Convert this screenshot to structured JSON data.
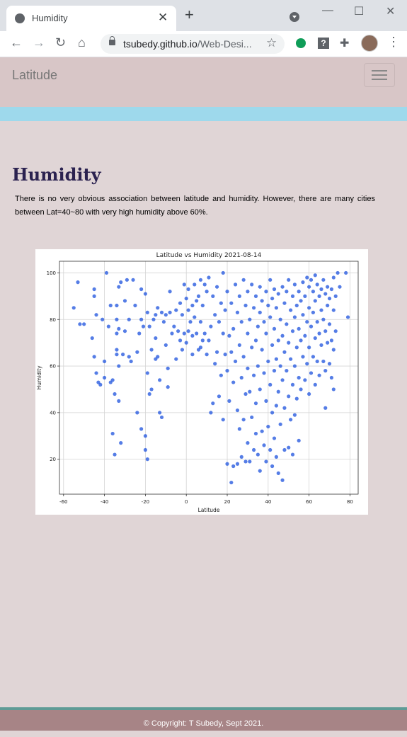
{
  "browser": {
    "tab_title": "Humidity",
    "url_host": "tsubedy.github.io",
    "url_path": "/Web-Desi..."
  },
  "navbar": {
    "brand": "Latitude"
  },
  "main": {
    "heading": "Humidity",
    "description": "There is no very obvious association between latitude and humidity. However, there are many cities between Lat=40~80 with very high humidity above 60%."
  },
  "chart_data": {
    "type": "scatter",
    "title": "Latitude vs Humidity 2021-08-14",
    "xlabel": "Latitude",
    "ylabel": "Humidity",
    "xlim": [
      -62,
      84
    ],
    "ylim": [
      5,
      105
    ],
    "xticks": [
      -60,
      -40,
      -20,
      0,
      20,
      40,
      60,
      80
    ],
    "yticks": [
      20,
      40,
      60,
      80,
      100
    ],
    "grid": true,
    "marker_color": "#2b5ce0",
    "points": [
      [
        -55,
        85
      ],
      [
        -53,
        96
      ],
      [
        -52,
        78
      ],
      [
        -50,
        78
      ],
      [
        -46,
        72
      ],
      [
        -45,
        93
      ],
      [
        -45,
        90
      ],
      [
        -45,
        64
      ],
      [
        -44,
        82
      ],
      [
        -44,
        57
      ],
      [
        -43,
        53
      ],
      [
        -42,
        52
      ],
      [
        -41,
        80
      ],
      [
        -40,
        62
      ],
      [
        -40,
        55
      ],
      [
        -39,
        100
      ],
      [
        -38,
        77
      ],
      [
        -37,
        86
      ],
      [
        -37,
        53
      ],
      [
        -36,
        54
      ],
      [
        -36,
        31
      ],
      [
        -35,
        48
      ],
      [
        -35,
        22
      ],
      [
        -34,
        86
      ],
      [
        -34,
        80
      ],
      [
        -34,
        74
      ],
      [
        -34,
        67
      ],
      [
        -34,
        65
      ],
      [
        -33,
        94
      ],
      [
        -33,
        76
      ],
      [
        -33,
        60
      ],
      [
        -33,
        45
      ],
      [
        -32,
        96
      ],
      [
        -32,
        27
      ],
      [
        -31,
        65
      ],
      [
        -30,
        88
      ],
      [
        -30,
        75
      ],
      [
        -29,
        97
      ],
      [
        -28,
        80
      ],
      [
        -28,
        64
      ],
      [
        -27,
        62
      ],
      [
        -26,
        97
      ],
      [
        -25,
        86
      ],
      [
        -24,
        40
      ],
      [
        -24,
        66
      ],
      [
        -23,
        74
      ],
      [
        -22,
        80
      ],
      [
        -22,
        93
      ],
      [
        -22,
        33
      ],
      [
        -21,
        77
      ],
      [
        -20,
        91
      ],
      [
        -20,
        30
      ],
      [
        -20,
        24
      ],
      [
        -19,
        83
      ],
      [
        -19,
        57
      ],
      [
        -19,
        20
      ],
      [
        -18,
        77
      ],
      [
        -18,
        48
      ],
      [
        -17,
        67
      ],
      [
        -17,
        50
      ],
      [
        -16,
        80
      ],
      [
        -15,
        82
      ],
      [
        -15,
        72
      ],
      [
        -15,
        63
      ],
      [
        -14,
        85
      ],
      [
        -14,
        64
      ],
      [
        -13,
        54
      ],
      [
        -13,
        40
      ],
      [
        -12,
        83
      ],
      [
        -12,
        38
      ],
      [
        -11,
        79
      ],
      [
        -10,
        82
      ],
      [
        -10,
        69
      ],
      [
        -9,
        59
      ],
      [
        -9,
        51
      ],
      [
        -8,
        92
      ],
      [
        -8,
        83
      ],
      [
        -7,
        74
      ],
      [
        -6,
        77
      ],
      [
        -5,
        84
      ],
      [
        -5,
        63
      ],
      [
        -4,
        75
      ],
      [
        -3,
        87
      ],
      [
        -3,
        71
      ],
      [
        -2,
        82
      ],
      [
        -2,
        67
      ],
      [
        -1,
        95
      ],
      [
        -1,
        74
      ],
      [
        0,
        89
      ],
      [
        0,
        70
      ],
      [
        1,
        93
      ],
      [
        1,
        84
      ],
      [
        1,
        75
      ],
      [
        2,
        79
      ],
      [
        3,
        86
      ],
      [
        3,
        73
      ],
      [
        3,
        65
      ],
      [
        4,
        95
      ],
      [
        4,
        81
      ],
      [
        5,
        88
      ],
      [
        5,
        74
      ],
      [
        6,
        90
      ],
      [
        6,
        67
      ],
      [
        7,
        97
      ],
      [
        7,
        79
      ],
      [
        7,
        68
      ],
      [
        8,
        86
      ],
      [
        8,
        71
      ],
      [
        9,
        95
      ],
      [
        9,
        74
      ],
      [
        10,
        92
      ],
      [
        10,
        65
      ],
      [
        11,
        98
      ],
      [
        11,
        71
      ],
      [
        12,
        77
      ],
      [
        12,
        40
      ],
      [
        13,
        90
      ],
      [
        13,
        44
      ],
      [
        14,
        82
      ],
      [
        14,
        61
      ],
      [
        15,
        94
      ],
      [
        15,
        66
      ],
      [
        16,
        79
      ],
      [
        16,
        47
      ],
      [
        17,
        87
      ],
      [
        17,
        56
      ],
      [
        18,
        100
      ],
      [
        18,
        74
      ],
      [
        18,
        37
      ],
      [
        19,
        84
      ],
      [
        19,
        65
      ],
      [
        20,
        92
      ],
      [
        20,
        58
      ],
      [
        20,
        18
      ],
      [
        21,
        73
      ],
      [
        21,
        45
      ],
      [
        22,
        87
      ],
      [
        22,
        66
      ],
      [
        22,
        10
      ],
      [
        23,
        76
      ],
      [
        23,
        53
      ],
      [
        23,
        17
      ],
      [
        24,
        95
      ],
      [
        24,
        62
      ],
      [
        25,
        83
      ],
      [
        25,
        41
      ],
      [
        25,
        18
      ],
      [
        26,
        90
      ],
      [
        26,
        69
      ],
      [
        26,
        33
      ],
      [
        27,
        79
      ],
      [
        27,
        55
      ],
      [
        27,
        21
      ],
      [
        28,
        97
      ],
      [
        28,
        64
      ],
      [
        28,
        37
      ],
      [
        29,
        86
      ],
      [
        29,
        48
      ],
      [
        29,
        19
      ],
      [
        30,
        92
      ],
      [
        30,
        74
      ],
      [
        30,
        59
      ],
      [
        30,
        27
      ],
      [
        31,
        80
      ],
      [
        31,
        49
      ],
      [
        31,
        19
      ],
      [
        32,
        95
      ],
      [
        32,
        68
      ],
      [
        32,
        38
      ],
      [
        33,
        85
      ],
      [
        33,
        56
      ],
      [
        33,
        24
      ],
      [
        34,
        90
      ],
      [
        34,
        71
      ],
      [
        34,
        44
      ],
      [
        34,
        31
      ],
      [
        35,
        77
      ],
      [
        35,
        60
      ],
      [
        35,
        22
      ],
      [
        36,
        94
      ],
      [
        36,
        83
      ],
      [
        36,
        50
      ],
      [
        36,
        15
      ],
      [
        37,
        88
      ],
      [
        37,
        67
      ],
      [
        37,
        32
      ],
      [
        38,
        79
      ],
      [
        38,
        57
      ],
      [
        38,
        26
      ],
      [
        39,
        92
      ],
      [
        39,
        74
      ],
      [
        39,
        45
      ],
      [
        39,
        19
      ],
      [
        40,
        86
      ],
      [
        40,
        62
      ],
      [
        40,
        34
      ],
      [
        41,
        97
      ],
      [
        41,
        81
      ],
      [
        41,
        52
      ],
      [
        41,
        24
      ],
      [
        42,
        89
      ],
      [
        42,
        69
      ],
      [
        42,
        40
      ],
      [
        42,
        17
      ],
      [
        43,
        93
      ],
      [
        43,
        76
      ],
      [
        43,
        58
      ],
      [
        43,
        29
      ],
      [
        44,
        85
      ],
      [
        44,
        63
      ],
      [
        44,
        43
      ],
      [
        44,
        21
      ],
      [
        45,
        91
      ],
      [
        45,
        71
      ],
      [
        45,
        49
      ],
      [
        45,
        14
      ],
      [
        46,
        80
      ],
      [
        46,
        60
      ],
      [
        46,
        35
      ],
      [
        47,
        94
      ],
      [
        47,
        73
      ],
      [
        47,
        54
      ],
      [
        47,
        11
      ],
      [
        48,
        87
      ],
      [
        48,
        66
      ],
      [
        48,
        42
      ],
      [
        48,
        24
      ],
      [
        49,
        92
      ],
      [
        49,
        78
      ],
      [
        49,
        58
      ],
      [
        50,
        97
      ],
      [
        50,
        70
      ],
      [
        50,
        47
      ],
      [
        50,
        25
      ],
      [
        51,
        84
      ],
      [
        51,
        63
      ],
      [
        51,
        37
      ],
      [
        52,
        90
      ],
      [
        52,
        75
      ],
      [
        52,
        52
      ],
      [
        52,
        22
      ],
      [
        53,
        95
      ],
      [
        53,
        81
      ],
      [
        53,
        60
      ],
      [
        53,
        39
      ],
      [
        54,
        86
      ],
      [
        54,
        68
      ],
      [
        54,
        46
      ],
      [
        55,
        92
      ],
      [
        55,
        76
      ],
      [
        55,
        55
      ],
      [
        55,
        28
      ],
      [
        56,
        88
      ],
      [
        56,
        71
      ],
      [
        56,
        50
      ],
      [
        57,
        96
      ],
      [
        57,
        82
      ],
      [
        57,
        64
      ],
      [
        58,
        90
      ],
      [
        58,
        73
      ],
      [
        58,
        54
      ],
      [
        59,
        98
      ],
      [
        59,
        79
      ],
      [
        59,
        61
      ],
      [
        60,
        94
      ],
      [
        60,
        85
      ],
      [
        60,
        68
      ],
      [
        60,
        48
      ],
      [
        61,
        97
      ],
      [
        61,
        77
      ],
      [
        61,
        57
      ],
      [
        62,
        92
      ],
      [
        62,
        83
      ],
      [
        62,
        64
      ],
      [
        63,
        99
      ],
      [
        63,
        88
      ],
      [
        63,
        72
      ],
      [
        63,
        52
      ],
      [
        64,
        95
      ],
      [
        64,
        79
      ],
      [
        64,
        62
      ],
      [
        65,
        90
      ],
      [
        65,
        74
      ],
      [
        65,
        56
      ],
      [
        66,
        93
      ],
      [
        66,
        84
      ],
      [
        66,
        69
      ],
      [
        67,
        97
      ],
      [
        67,
        80
      ],
      [
        67,
        62
      ],
      [
        68,
        91
      ],
      [
        68,
        75
      ],
      [
        68,
        58
      ],
      [
        68,
        42
      ],
      [
        69,
        94
      ],
      [
        69,
        86
      ],
      [
        69,
        70
      ],
      [
        70,
        89
      ],
      [
        70,
        78
      ],
      [
        70,
        61
      ],
      [
        71,
        93
      ],
      [
        71,
        71
      ],
      [
        71,
        55
      ],
      [
        72,
        98
      ],
      [
        72,
        84
      ],
      [
        72,
        67
      ],
      [
        72,
        50
      ],
      [
        73,
        90
      ],
      [
        73,
        75
      ],
      [
        74,
        100
      ],
      [
        75,
        94
      ],
      [
        78,
        100
      ],
      [
        79,
        81
      ]
    ]
  },
  "footer": {
    "text": "© Copyright: T Subedy, Sept 2021."
  }
}
